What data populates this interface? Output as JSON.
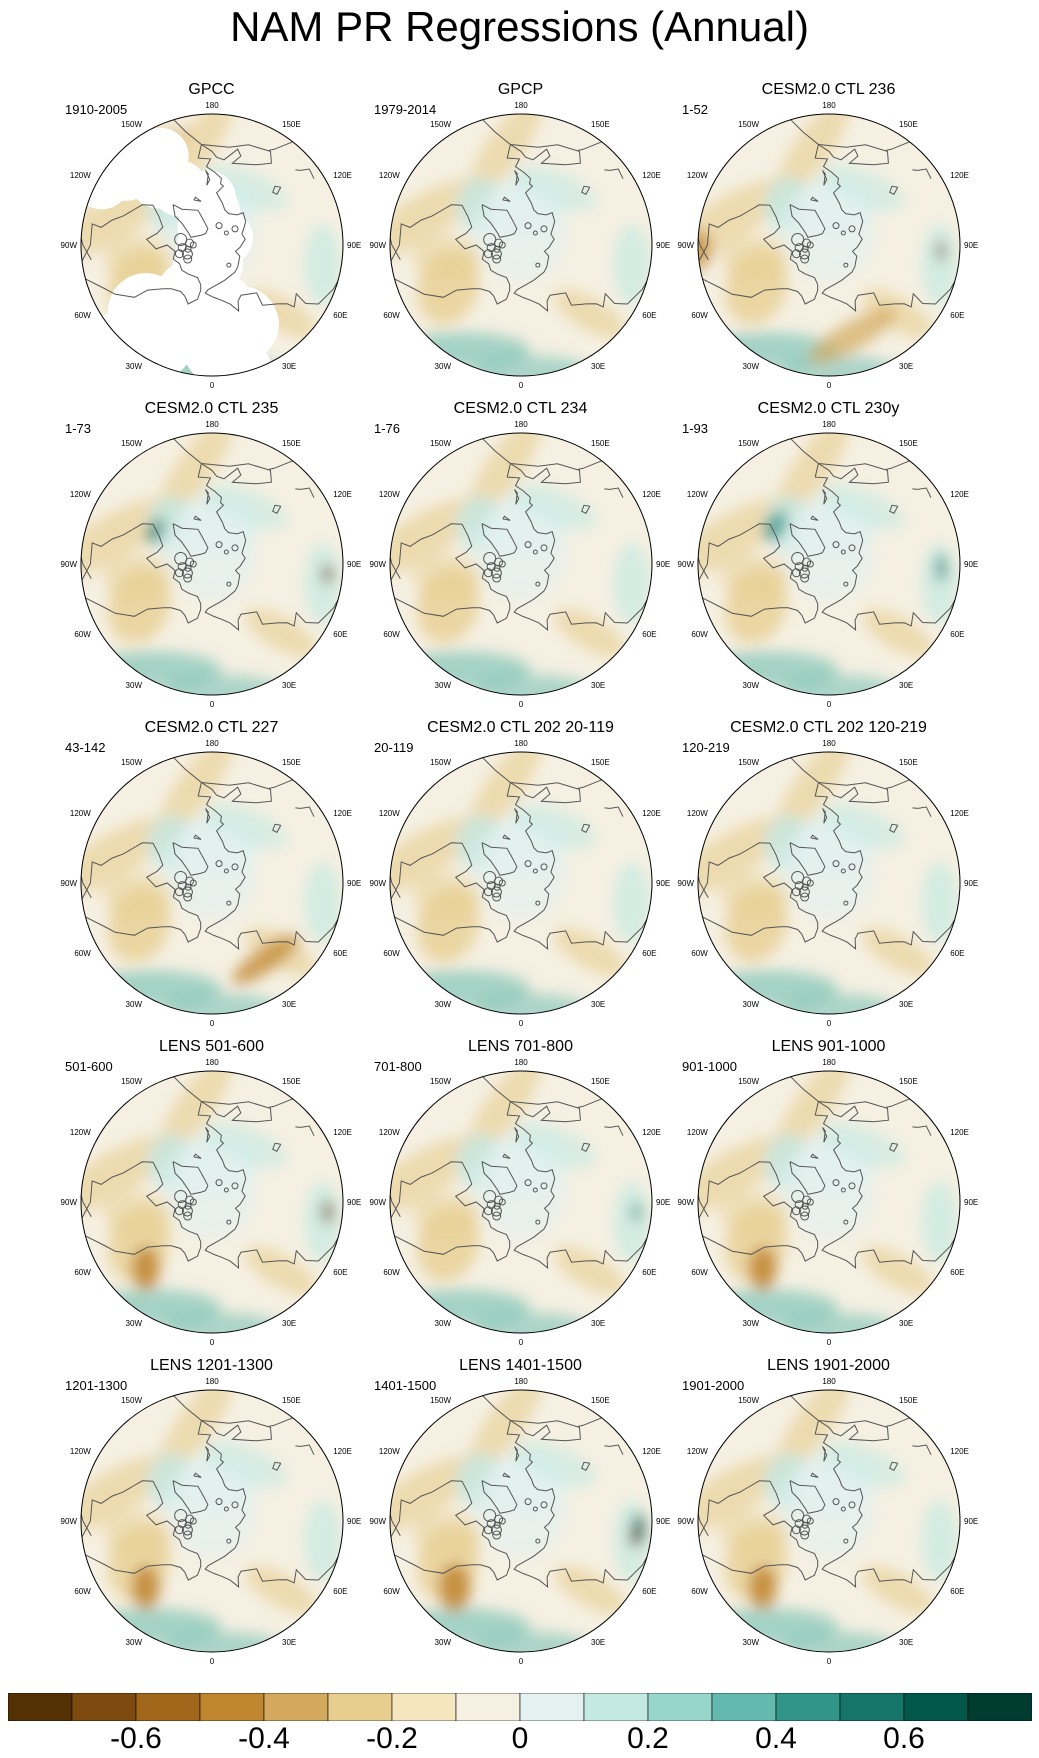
{
  "title": "NAM PR Regressions (Annual)",
  "longitude_labels": [
    "180",
    "150E",
    "120E",
    "90E",
    "60E",
    "30E",
    "0",
    "30W",
    "60W",
    "90W",
    "120W",
    "150W"
  ],
  "panels": [
    {
      "title": "GPCC",
      "period": "1910-2005",
      "land_missing": true
    },
    {
      "title": "GPCP",
      "period": "1979-2014"
    },
    {
      "title": "CESM2.0 CTL 236",
      "period": "1-52"
    },
    {
      "title": "CESM2.0 CTL 235",
      "period": "1-73"
    },
    {
      "title": "CESM2.0 CTL 234",
      "period": "1-76"
    },
    {
      "title": "CESM2.0 CTL 230y",
      "period": "1-93"
    },
    {
      "title": "CESM2.0 CTL 227",
      "period": "43-142"
    },
    {
      "title": "CESM2.0 CTL 202 20-119",
      "period": "20-119"
    },
    {
      "title": "CESM2.0 CTL 202 120-219",
      "period": "120-219"
    },
    {
      "title": "LENS 501-600",
      "period": "501-600"
    },
    {
      "title": "LENS 701-800",
      "period": "701-800"
    },
    {
      "title": "LENS 901-1000",
      "period": "901-1000"
    },
    {
      "title": "LENS 1201-1300",
      "period": "1201-1300"
    },
    {
      "title": "LENS 1401-1500",
      "period": "1401-1500"
    },
    {
      "title": "LENS 1901-2000",
      "period": "1901-2000"
    }
  ],
  "colorbar": {
    "colors": [
      "#543005",
      "#7f4a10",
      "#a0661a",
      "#c0852f",
      "#d3a95d",
      "#e7cd8e",
      "#f5e6bf",
      "#f5f0e2",
      "#e3f1f0",
      "#c4e9e3",
      "#96d6cb",
      "#63b9ad",
      "#32958a",
      "#167569",
      "#01584a",
      "#003c30"
    ],
    "ticks": [
      {
        "label": "-0.6",
        "value": -0.6
      },
      {
        "label": "-0.4",
        "value": -0.4
      },
      {
        "label": "-0.2",
        "value": -0.2
      },
      {
        "label": "0",
        "value": 0
      },
      {
        "label": "0.2",
        "value": 0.2
      },
      {
        "label": "0.4",
        "value": 0.4
      },
      {
        "label": "0.6",
        "value": 0.6
      }
    ],
    "min": -0.8,
    "max": 0.8
  }
}
